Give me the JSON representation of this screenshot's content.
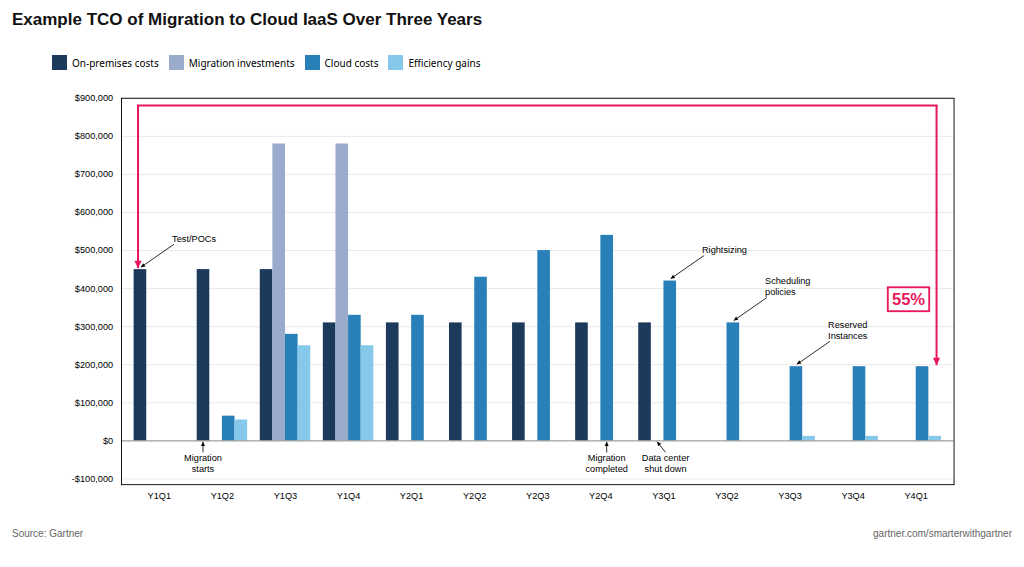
{
  "chart_data": {
    "type": "bar",
    "title": "Example TCO of Migration to Cloud IaaS Over Three Years",
    "categories": [
      "Y1Q1",
      "Y1Q2",
      "Y1Q3",
      "Y1Q4",
      "Y2Q1",
      "Y2Q2",
      "Y2Q3",
      "Y2Q4",
      "Y3Q1",
      "Y3Q2",
      "Y3Q3",
      "Y3Q4",
      "Y4Q1"
    ],
    "series": [
      {
        "name": "On-premises costs",
        "color": "#1b3a5c",
        "values": [
          450000,
          450000,
          450000,
          310000,
          310000,
          310000,
          310000,
          310000,
          310000,
          0,
          0,
          0,
          0
        ]
      },
      {
        "name": "Migration investments",
        "color": "#9aabcc",
        "values": [
          0,
          0,
          780000,
          780000,
          0,
          0,
          0,
          0,
          0,
          0,
          0,
          0,
          0
        ]
      },
      {
        "name": "Cloud costs",
        "color": "#2980b9",
        "values": [
          0,
          65000,
          280000,
          330000,
          330000,
          430000,
          500000,
          540000,
          420000,
          310000,
          195000,
          195000,
          195000
        ]
      },
      {
        "name": "Efficiency gains",
        "color": "#85c8ea",
        "values": [
          0,
          55000,
          250000,
          250000,
          0,
          0,
          0,
          0,
          0,
          0,
          12000,
          12000,
          12000
        ]
      }
    ],
    "ylim": [
      -115000,
      900000
    ],
    "yticks": [
      {
        "value": -100000,
        "label": "-$100,000"
      },
      {
        "value": 0,
        "label": "$0"
      },
      {
        "value": 100000,
        "label": "$100,000"
      },
      {
        "value": 200000,
        "label": "$200,000"
      },
      {
        "value": 300000,
        "label": "$300,000"
      },
      {
        "value": 400000,
        "label": "$400,000"
      },
      {
        "value": 500000,
        "label": "$500,000"
      },
      {
        "value": 600000,
        "label": "$600,000"
      },
      {
        "value": 700000,
        "label": "$700,000"
      },
      {
        "value": 800000,
        "label": "$800,000"
      },
      {
        "value": 900000,
        "label": "$900,000"
      }
    ],
    "grid": true,
    "legend": "top",
    "annotations": [
      {
        "text": "Test/POCs",
        "category": "Y1Q1",
        "series": "On-premises costs",
        "value": 450000
      },
      {
        "text": "Migration\nstarts",
        "category": "Y1Q2",
        "series": "On-premises costs",
        "value": 0
      },
      {
        "text": "Migration\ncompleted",
        "category": "Y2Q4",
        "series": "Cloud costs",
        "value": 0
      },
      {
        "text": "Data center\nshut down",
        "category": "Y3Q1",
        "series": "Migration investments",
        "value": 0
      },
      {
        "text": "Rightsizing",
        "category": "Y3Q1",
        "series": "Cloud costs",
        "value": 420000
      },
      {
        "text": "Scheduling\npolicies",
        "category": "Y3Q2",
        "series": "Cloud costs",
        "value": 310000
      },
      {
        "text": "Reserved\nInstances",
        "category": "Y3Q3",
        "series": "Cloud costs",
        "value": 195000
      }
    ],
    "bracket": {
      "text": "55%",
      "color": "#e8185a",
      "top": 880000,
      "start": {
        "category": "Y1Q1",
        "value": 450000
      },
      "end": {
        "category": "Y4Q1",
        "value": 195000
      }
    },
    "source": "Source: Gartner",
    "watermark": "gartner.com/smarterwithgartner"
  }
}
